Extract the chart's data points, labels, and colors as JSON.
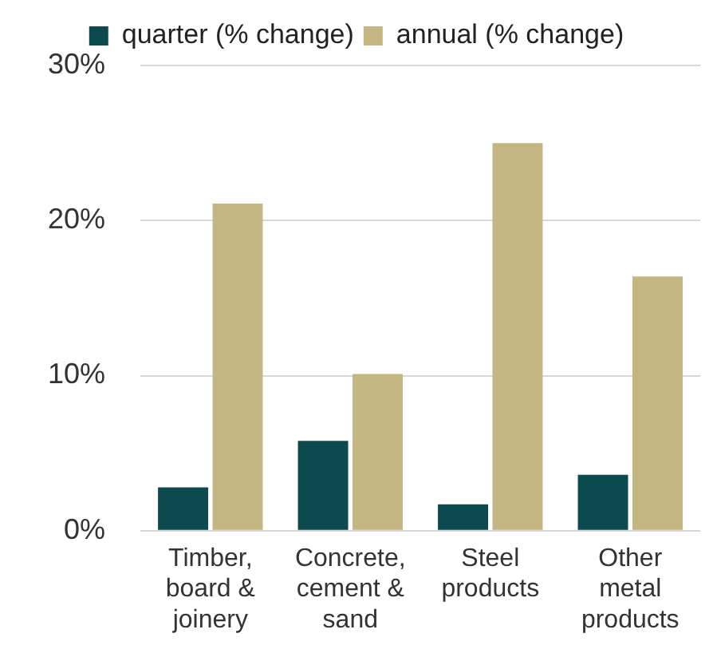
{
  "chart_data": {
    "type": "bar",
    "categories": [
      "Timber, board & joinery",
      "Concrete, cement & sand",
      "Steel products",
      "Other metal products"
    ],
    "series": [
      {
        "name": "quarter (% change)",
        "color": "#0d4a4f",
        "values": [
          2.8,
          5.8,
          1.7,
          3.6
        ]
      },
      {
        "name": "annual (% change)",
        "color": "#c4b683",
        "values": [
          21.1,
          10.1,
          25.0,
          16.4
        ]
      }
    ],
    "ylim": [
      0,
      30
    ],
    "yticks": [
      {
        "value": 0,
        "label": "0%"
      },
      {
        "value": 10,
        "label": "10%"
      },
      {
        "value": 20,
        "label": "20%"
      },
      {
        "value": 30,
        "label": "30%"
      }
    ],
    "grid": "y",
    "legend": "top"
  }
}
